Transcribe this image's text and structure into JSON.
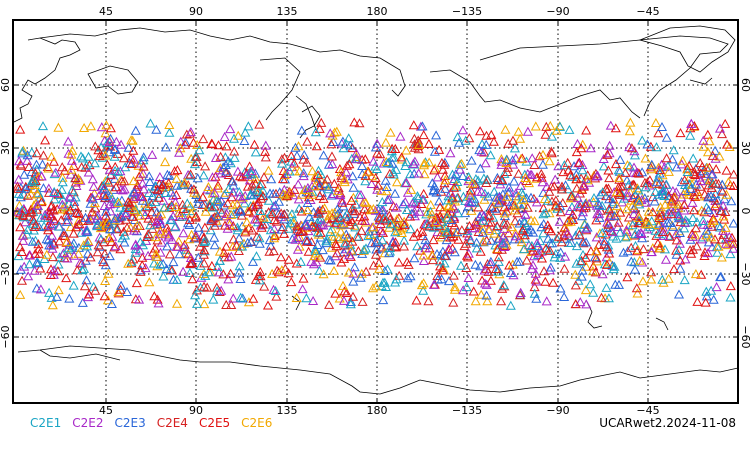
{
  "chart_data": {
    "type": "scatter",
    "marker": "open-triangle",
    "projection": "equirectangular",
    "x_ticks": [
      "45",
      "90",
      "135",
      "180",
      "−135",
      "−90",
      "−45"
    ],
    "y_ticks": [
      "60",
      "30",
      "0",
      "−30",
      "−60"
    ],
    "series": [
      {
        "name": "C2E1",
        "color": "#1aa5c4"
      },
      {
        "name": "C2E2",
        "color": "#a828c8"
      },
      {
        "name": "C2E3",
        "color": "#2a66d8"
      },
      {
        "name": "C2E4",
        "color": "#d62020"
      },
      {
        "name": "C2E5",
        "color": "#e01010"
      },
      {
        "name": "C2E6",
        "color": "#f2a800"
      }
    ],
    "latitude_range_of_points": [
      -42,
      44
    ],
    "grid": true
  },
  "footer": {
    "stamp": "UCARwet2.2024-11-08"
  }
}
